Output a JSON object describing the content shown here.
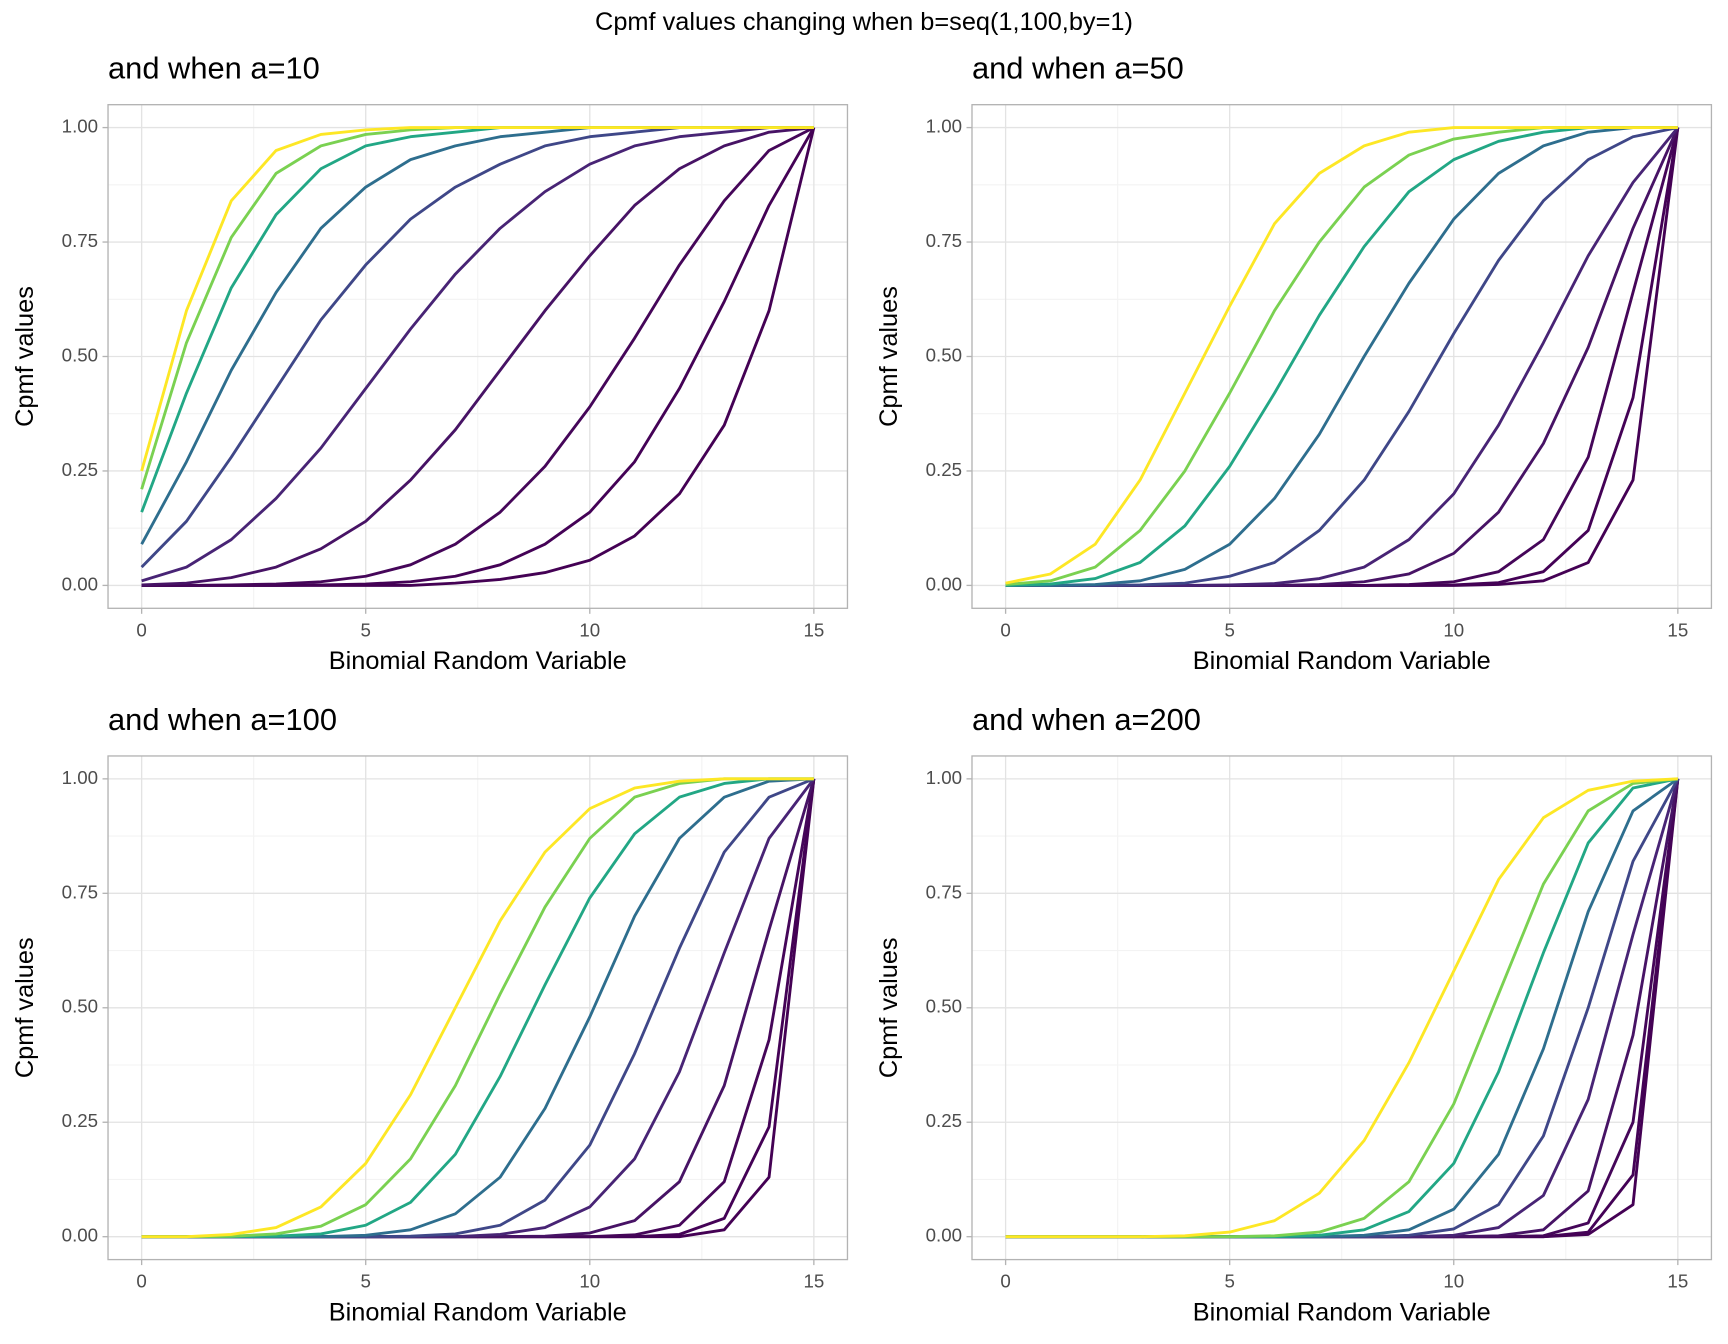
{
  "title": "Cpmf values changing when b=seq(1,100,by=1)",
  "chart_data": [
    {
      "type": "line",
      "title": "and when a=10",
      "x_label": "Binomial Random Variable",
      "y_label": "Cpmf values",
      "x": [
        0,
        1,
        2,
        3,
        4,
        5,
        6,
        7,
        8,
        9,
        10,
        11,
        12,
        13,
        14,
        15
      ],
      "xlim": [
        -0.75,
        15.75
      ],
      "ylim": [
        -0.05,
        1.05
      ],
      "xticks": [
        0,
        5,
        10,
        15
      ],
      "yticks": [
        {
          "value": 0,
          "label": "0.00"
        },
        {
          "value": 0.25,
          "label": "0.25"
        },
        {
          "value": 0.5,
          "label": "0.50"
        },
        {
          "value": 0.75,
          "label": "0.75"
        },
        {
          "value": 1,
          "label": "1.00"
        }
      ],
      "grid": true,
      "series": [
        {
          "color": "#440154",
          "values": [
            0,
            0,
            0,
            0,
            0,
            0,
            0,
            0.005,
            0.013,
            0.028,
            0.055,
            0.108,
            0.2,
            0.35,
            0.6,
            1
          ]
        },
        {
          "color": "#440256",
          "values": [
            0,
            0,
            0,
            0,
            0.001,
            0.003,
            0.008,
            0.02,
            0.045,
            0.09,
            0.16,
            0.27,
            0.43,
            0.62,
            0.83,
            1
          ]
        },
        {
          "color": "#450659",
          "values": [
            0,
            0,
            0.001,
            0.003,
            0.008,
            0.02,
            0.045,
            0.09,
            0.16,
            0.26,
            0.39,
            0.54,
            0.7,
            0.84,
            0.95,
            1
          ]
        },
        {
          "color": "#471365",
          "values": [
            0.001,
            0.005,
            0.017,
            0.04,
            0.08,
            0.14,
            0.23,
            0.34,
            0.47,
            0.6,
            0.72,
            0.83,
            0.91,
            0.96,
            0.99,
            1
          ]
        },
        {
          "color": "#482475",
          "values": [
            0.01,
            0.04,
            0.1,
            0.19,
            0.3,
            0.43,
            0.56,
            0.68,
            0.78,
            0.86,
            0.92,
            0.96,
            0.98,
            0.99,
            1,
            1
          ]
        },
        {
          "color": "#3f4788",
          "values": [
            0.04,
            0.14,
            0.28,
            0.43,
            0.58,
            0.7,
            0.8,
            0.87,
            0.92,
            0.96,
            0.98,
            0.99,
            1,
            1,
            1,
            1
          ]
        },
        {
          "color": "#2e6e8e",
          "values": [
            0.09,
            0.27,
            0.47,
            0.64,
            0.78,
            0.87,
            0.93,
            0.96,
            0.98,
            0.99,
            1,
            1,
            1,
            1,
            1,
            1
          ]
        },
        {
          "color": "#22a785",
          "values": [
            0.16,
            0.42,
            0.65,
            0.81,
            0.91,
            0.96,
            0.98,
            0.99,
            1,
            1,
            1,
            1,
            1,
            1,
            1,
            1
          ]
        },
        {
          "color": "#7ad151",
          "values": [
            0.21,
            0.53,
            0.76,
            0.9,
            0.96,
            0.985,
            0.995,
            1,
            1,
            1,
            1,
            1,
            1,
            1,
            1,
            1
          ]
        },
        {
          "color": "#fde725",
          "values": [
            0.25,
            0.6,
            0.84,
            0.95,
            0.985,
            0.995,
            1,
            1,
            1,
            1,
            1,
            1,
            1,
            1,
            1,
            1
          ]
        }
      ]
    },
    {
      "type": "line",
      "title": "and when a=50",
      "x_label": "Binomial Random Variable",
      "y_label": "Cpmf values",
      "x": [
        0,
        1,
        2,
        3,
        4,
        5,
        6,
        7,
        8,
        9,
        10,
        11,
        12,
        13,
        14,
        15
      ],
      "xlim": [
        -0.75,
        15.75
      ],
      "ylim": [
        -0.05,
        1.05
      ],
      "xticks": [
        0,
        5,
        10,
        15
      ],
      "yticks": [
        {
          "value": 0,
          "label": "0.00"
        },
        {
          "value": 0.25,
          "label": "0.25"
        },
        {
          "value": 0.5,
          "label": "0.50"
        },
        {
          "value": 0.75,
          "label": "0.75"
        },
        {
          "value": 1,
          "label": "1.00"
        }
      ],
      "grid": true,
      "series": [
        {
          "color": "#440154",
          "values": [
            0,
            0,
            0,
            0,
            0,
            0,
            0,
            0,
            0,
            0,
            0,
            0.002,
            0.01,
            0.05,
            0.23,
            1
          ]
        },
        {
          "color": "#440256",
          "values": [
            0,
            0,
            0,
            0,
            0,
            0,
            0,
            0,
            0,
            0,
            0.001,
            0.006,
            0.03,
            0.12,
            0.41,
            1
          ]
        },
        {
          "color": "#450659",
          "values": [
            0,
            0,
            0,
            0,
            0,
            0,
            0,
            0,
            0,
            0.002,
            0.008,
            0.03,
            0.1,
            0.28,
            0.64,
            1
          ]
        },
        {
          "color": "#471365",
          "values": [
            0,
            0,
            0,
            0,
            0,
            0,
            0,
            0.002,
            0.008,
            0.025,
            0.07,
            0.16,
            0.31,
            0.52,
            0.78,
            1
          ]
        },
        {
          "color": "#482475",
          "values": [
            0,
            0,
            0,
            0,
            0,
            0.001,
            0.004,
            0.015,
            0.04,
            0.1,
            0.2,
            0.35,
            0.53,
            0.72,
            0.88,
            1
          ]
        },
        {
          "color": "#3f4788",
          "values": [
            0,
            0,
            0,
            0.001,
            0.005,
            0.02,
            0.05,
            0.12,
            0.23,
            0.38,
            0.55,
            0.71,
            0.84,
            0.93,
            0.98,
            1
          ]
        },
        {
          "color": "#2e6e8e",
          "values": [
            0,
            0,
            0.002,
            0.01,
            0.035,
            0.09,
            0.19,
            0.33,
            0.5,
            0.66,
            0.8,
            0.9,
            0.96,
            0.99,
            1,
            1
          ]
        },
        {
          "color": "#22a785",
          "values": [
            0,
            0.003,
            0.015,
            0.05,
            0.13,
            0.26,
            0.42,
            0.59,
            0.74,
            0.86,
            0.93,
            0.97,
            0.99,
            1,
            1,
            1
          ]
        },
        {
          "color": "#7ad151",
          "values": [
            0.002,
            0.01,
            0.04,
            0.12,
            0.25,
            0.42,
            0.6,
            0.75,
            0.87,
            0.94,
            0.975,
            0.99,
            1,
            1,
            1,
            1
          ]
        },
        {
          "color": "#fde725",
          "values": [
            0.005,
            0.025,
            0.09,
            0.23,
            0.42,
            0.61,
            0.79,
            0.9,
            0.96,
            0.99,
            1,
            1,
            1,
            1,
            1,
            1
          ]
        }
      ]
    },
    {
      "type": "line",
      "title": "and when a=100",
      "x_label": "Binomial Random Variable",
      "y_label": "Cpmf values",
      "x": [
        0,
        1,
        2,
        3,
        4,
        5,
        6,
        7,
        8,
        9,
        10,
        11,
        12,
        13,
        14,
        15
      ],
      "xlim": [
        -0.75,
        15.75
      ],
      "ylim": [
        -0.05,
        1.05
      ],
      "xticks": [
        0,
        5,
        10,
        15
      ],
      "yticks": [
        {
          "value": 0,
          "label": "0.00"
        },
        {
          "value": 0.25,
          "label": "0.25"
        },
        {
          "value": 0.5,
          "label": "0.50"
        },
        {
          "value": 0.75,
          "label": "0.75"
        },
        {
          "value": 1,
          "label": "1.00"
        }
      ],
      "grid": true,
      "series": [
        {
          "color": "#440154",
          "values": [
            0,
            0,
            0,
            0,
            0,
            0,
            0,
            0,
            0,
            0,
            0,
            0,
            0,
            0.015,
            0.13,
            1
          ]
        },
        {
          "color": "#440256",
          "values": [
            0,
            0,
            0,
            0,
            0,
            0,
            0,
            0,
            0,
            0,
            0,
            0,
            0.005,
            0.04,
            0.24,
            1
          ]
        },
        {
          "color": "#450659",
          "values": [
            0,
            0,
            0,
            0,
            0,
            0,
            0,
            0,
            0,
            0,
            0,
            0.004,
            0.025,
            0.12,
            0.43,
            1
          ]
        },
        {
          "color": "#471365",
          "values": [
            0,
            0,
            0,
            0,
            0,
            0,
            0,
            0,
            0,
            0.001,
            0.008,
            0.035,
            0.12,
            0.33,
            0.67,
            1
          ]
        },
        {
          "color": "#482475",
          "values": [
            0,
            0,
            0,
            0,
            0,
            0,
            0,
            0,
            0.005,
            0.02,
            0.065,
            0.17,
            0.36,
            0.62,
            0.87,
            1
          ]
        },
        {
          "color": "#3f4788",
          "values": [
            0,
            0,
            0,
            0,
            0,
            0,
            0.001,
            0.006,
            0.025,
            0.08,
            0.2,
            0.4,
            0.63,
            0.84,
            0.96,
            1
          ]
        },
        {
          "color": "#2e6e8e",
          "values": [
            0,
            0,
            0,
            0,
            0,
            0.003,
            0.015,
            0.05,
            0.13,
            0.28,
            0.48,
            0.7,
            0.87,
            0.96,
            0.995,
            1
          ]
        },
        {
          "color": "#22a785",
          "values": [
            0,
            0,
            0,
            0.001,
            0.006,
            0.025,
            0.075,
            0.18,
            0.35,
            0.55,
            0.74,
            0.88,
            0.96,
            0.99,
            1,
            1
          ]
        },
        {
          "color": "#7ad151",
          "values": [
            0,
            0,
            0.001,
            0.006,
            0.023,
            0.07,
            0.17,
            0.33,
            0.53,
            0.72,
            0.87,
            0.96,
            0.99,
            1,
            1,
            1
          ]
        },
        {
          "color": "#fde725",
          "values": [
            0,
            0,
            0.005,
            0.02,
            0.065,
            0.16,
            0.31,
            0.5,
            0.69,
            0.84,
            0.935,
            0.98,
            0.995,
            1,
            1,
            1
          ]
        }
      ]
    },
    {
      "type": "line",
      "title": "and when a=200",
      "x_label": "Binomial Random Variable",
      "y_label": "Cpmf values",
      "x": [
        0,
        1,
        2,
        3,
        4,
        5,
        6,
        7,
        8,
        9,
        10,
        11,
        12,
        13,
        14,
        15
      ],
      "xlim": [
        -0.75,
        15.75
      ],
      "ylim": [
        -0.05,
        1.05
      ],
      "xticks": [
        0,
        5,
        10,
        15
      ],
      "yticks": [
        {
          "value": 0,
          "label": "0.00"
        },
        {
          "value": 0.25,
          "label": "0.25"
        },
        {
          "value": 0.5,
          "label": "0.50"
        },
        {
          "value": 0.75,
          "label": "0.75"
        },
        {
          "value": 1,
          "label": "1.00"
        }
      ],
      "grid": true,
      "series": [
        {
          "color": "#440154",
          "values": [
            0,
            0,
            0,
            0,
            0,
            0,
            0,
            0,
            0,
            0,
            0,
            0,
            0,
            0.005,
            0.07,
            1
          ]
        },
        {
          "color": "#440256",
          "values": [
            0,
            0,
            0,
            0,
            0,
            0,
            0,
            0,
            0,
            0,
            0,
            0,
            0,
            0.01,
            0.135,
            1
          ]
        },
        {
          "color": "#450659",
          "values": [
            0,
            0,
            0,
            0,
            0,
            0,
            0,
            0,
            0,
            0,
            0,
            0,
            0.002,
            0.03,
            0.25,
            1
          ]
        },
        {
          "color": "#471365",
          "values": [
            0,
            0,
            0,
            0,
            0,
            0,
            0,
            0,
            0,
            0,
            0,
            0.002,
            0.015,
            0.1,
            0.44,
            1
          ]
        },
        {
          "color": "#482475",
          "values": [
            0,
            0,
            0,
            0,
            0,
            0,
            0,
            0,
            0,
            0,
            0.003,
            0.02,
            0.09,
            0.3,
            0.66,
            1
          ]
        },
        {
          "color": "#3f4788",
          "values": [
            0,
            0,
            0,
            0,
            0,
            0,
            0,
            0,
            0,
            0.003,
            0.017,
            0.07,
            0.22,
            0.5,
            0.82,
            1
          ]
        },
        {
          "color": "#2e6e8e",
          "values": [
            0,
            0,
            0,
            0,
            0,
            0,
            0,
            0,
            0.003,
            0.015,
            0.06,
            0.18,
            0.41,
            0.71,
            0.93,
            1
          ]
        },
        {
          "color": "#22a785",
          "values": [
            0,
            0,
            0,
            0,
            0,
            0,
            0,
            0.003,
            0.015,
            0.055,
            0.16,
            0.36,
            0.62,
            0.86,
            0.98,
            1
          ]
        },
        {
          "color": "#7ad151",
          "values": [
            0,
            0,
            0,
            0,
            0,
            0,
            0.002,
            0.01,
            0.04,
            0.12,
            0.29,
            0.53,
            0.77,
            0.93,
            0.99,
            1
          ]
        },
        {
          "color": "#fde725",
          "values": [
            0,
            0,
            0,
            0,
            0.002,
            0.01,
            0.035,
            0.095,
            0.21,
            0.38,
            0.58,
            0.78,
            0.915,
            0.975,
            0.995,
            1
          ]
        }
      ]
    }
  ]
}
